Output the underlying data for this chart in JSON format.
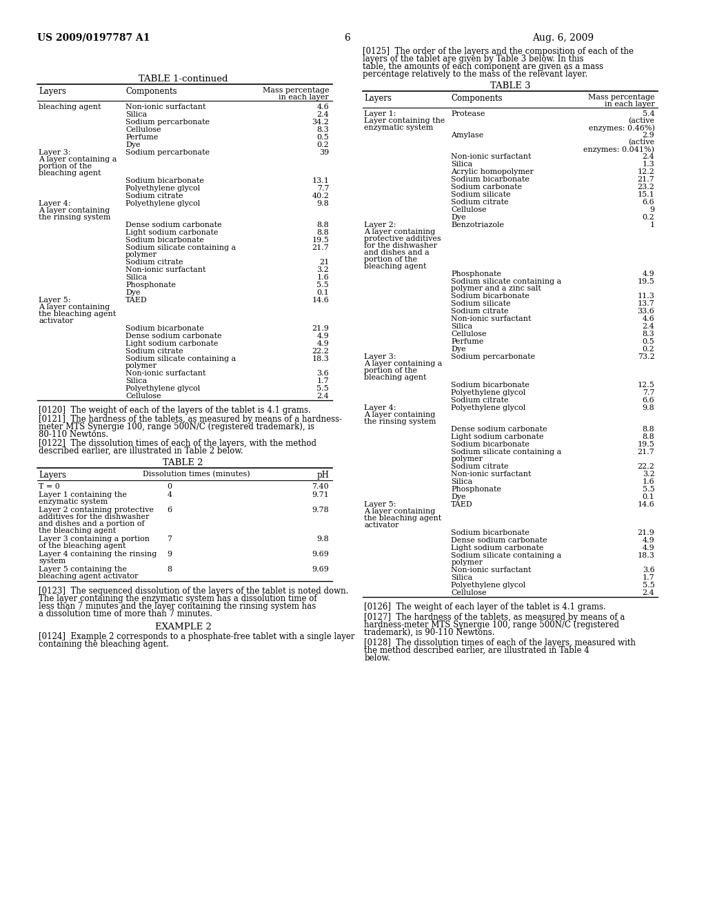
{
  "page_header_left": "US 2009/0197787 A1",
  "page_header_right": "Aug. 6, 2009",
  "page_number": "6",
  "background_color": "#ffffff",
  "text_color": "#000000",
  "font_size_body": 8.5,
  "font_size_header": 10,
  "font_size_table_title": 9.5,
  "left_column": {
    "table1_continued": {
      "title": "TABLE 1-continued",
      "col_headers": [
        "Layers",
        "Components",
        "Mass percentage\nin each layer"
      ],
      "rows": [
        [
          "bleaching agent",
          "Non-ionic surfactant",
          "4.6"
        ],
        [
          "",
          "Silica",
          "2.4"
        ],
        [
          "",
          "Sodium percarbonate",
          "34.2"
        ],
        [
          "",
          "Cellulose",
          "8.3"
        ],
        [
          "",
          "Perfume",
          "0.5"
        ],
        [
          "",
          "Dye",
          "0.2"
        ],
        [
          "Layer 3:\nA layer containing a\nportion of the\nbleaching agent",
          "Sodium percarbonate",
          "39"
        ],
        [
          "",
          "Sodium bicarbonate",
          "13.1"
        ],
        [
          "",
          "Polyethylene glycol",
          "7.7"
        ],
        [
          "",
          "Sodium citrate",
          "40.2"
        ],
        [
          "Layer 4:\nA layer containing\nthe rinsing system",
          "Polyethylene glycol",
          "9.8"
        ],
        [
          "",
          "Dense sodium carbonate",
          "8.8"
        ],
        [
          "",
          "Light sodium carbonate",
          "8.8"
        ],
        [
          "",
          "Sodium bicarbonate",
          "19.5"
        ],
        [
          "",
          "Sodium silicate containing a\npolymer",
          "21.7"
        ],
        [
          "",
          "Sodium citrate",
          "21"
        ],
        [
          "",
          "Non-ionic surfactant",
          "3.2"
        ],
        [
          "",
          "Silica",
          "1.6"
        ],
        [
          "",
          "Phosphonate",
          "5.5"
        ],
        [
          "",
          "Dye",
          "0.1"
        ],
        [
          "Layer 5:\nA layer containing\nthe bleaching agent\nactivator",
          "TAED",
          "14.6"
        ],
        [
          "",
          "Sodium bicarbonate",
          "21.9"
        ],
        [
          "",
          "Dense sodium carbonate",
          "4.9"
        ],
        [
          "",
          "Light sodium carbonate",
          "4.9"
        ],
        [
          "",
          "Sodium citrate",
          "22.2"
        ],
        [
          "",
          "Sodium silicate containing a\npolymer",
          "18.3"
        ],
        [
          "",
          "Non-ionic surfactant",
          "3.6"
        ],
        [
          "",
          "Silica",
          "1.7"
        ],
        [
          "",
          "Polyethylene glycol",
          "5.5"
        ],
        [
          "",
          "Cellulose",
          "2.4"
        ]
      ]
    },
    "paragraphs_bottom": [
      "[0120] The weight of each of the layers of the tablet is 4.1 grams.",
      "[0121] The hardness of the tablets, as measured by means of a hardness-meter MTS Synergie 100, range 500N/C (registered trademark), is 80-110 Newtons.",
      "[0122] The dissolution times of each of the layers, with the method described earlier, are illustrated in Table 2 below."
    ],
    "table2": {
      "title": "TABLE 2",
      "col_headers": [
        "Layers",
        "Dissolution times (minutes)",
        "pH"
      ],
      "rows": [
        [
          "T = 0",
          "0",
          "7.40"
        ],
        [
          "Layer 1 containing the\nenzymatic system",
          "4",
          "9.71"
        ],
        [
          "Layer 2 containing protective\nadditives for the dishwasher\nand dishes and a portion of\nthe bleaching agent",
          "6",
          "9.78"
        ],
        [
          "Layer 3 containing a portion\nof the bleaching agent",
          "7",
          "9.8"
        ],
        [
          "Layer 4 containing the rinsing\nsystem",
          "9",
          "9.69"
        ],
        [
          "Layer 5 containing the\nbleaching agent activator",
          "8",
          "9.69"
        ]
      ]
    },
    "paragraphs_after_table2": [
      "[0123] The sequenced dissolution of the layers of the tablet is noted down. The layer containing the enzymatic system has a dissolution time of less than 7 minutes and the layer containing the rinsing system has a dissolution time of more than 7 minutes.",
      "EXAMPLE 2",
      "[0124] Example 2 corresponds to a phosphate-free tablet with a single layer containing the bleaching agent."
    ]
  },
  "right_column": {
    "paragraph_intro": "[0125] The order of the layers and the composition of each of the layers of the tablet are given by Table 3 below. In this table, the amounts of each component are given as a mass percentage relatively to the mass of the relevant layer.",
    "table3": {
      "title": "TABLE 3",
      "col_headers": [
        "Layers",
        "Components",
        "Mass percentage\nin each layer"
      ],
      "rows": [
        [
          "Layer 1:\nLayer containing the\nenzymatic system",
          "Protease",
          "5.4\n(active\nenzymes: 0.46%)"
        ],
        [
          "",
          "Amylase",
          "2.9\n(active\nenzymes: 0.041%)"
        ],
        [
          "",
          "Non-ionic surfactant",
          "2.4"
        ],
        [
          "",
          "Silica",
          "1.3"
        ],
        [
          "",
          "Acrylic homopolymer",
          "12.2"
        ],
        [
          "",
          "Sodium bicarbonate",
          "21.7"
        ],
        [
          "",
          "Sodium carbonate",
          "23.2"
        ],
        [
          "",
          "Sodium silicate",
          "15.1"
        ],
        [
          "",
          "Sodium citrate",
          "6.6"
        ],
        [
          "",
          "Cellulose",
          "9"
        ],
        [
          "",
          "Dye",
          "0.2"
        ],
        [
          "Layer 2:\nA layer containing\nprotective additives\nfor the dishwasher\nand dishes and a\nportion of the\nbleaching agent",
          "Benzotriazole",
          "1"
        ],
        [
          "",
          "Phosphonate",
          "4.9"
        ],
        [
          "",
          "Sodium silicate containing a\npolymer and a zinc salt",
          "19.5"
        ],
        [
          "",
          "Sodium bicarbonate",
          "11.3"
        ],
        [
          "",
          "Sodium silicate",
          "13.7"
        ],
        [
          "",
          "Sodium citrate",
          "33.6"
        ],
        [
          "",
          "Non-ionic surfactant",
          "4.6"
        ],
        [
          "",
          "Silica",
          "2.4"
        ],
        [
          "",
          "Cellulose",
          "8.3"
        ],
        [
          "",
          "Perfume",
          "0.5"
        ],
        [
          "",
          "Dye",
          "0.2"
        ],
        [
          "Layer 3:\nA layer containing a\nportion of the\nbleaching agent",
          "Sodium percarbonate",
          "73.2"
        ],
        [
          "",
          "Sodium bicarbonate",
          "12.5"
        ],
        [
          "",
          "Polyethylene glycol",
          "7.7"
        ],
        [
          "",
          "Sodium citrate",
          "6.6"
        ],
        [
          "Layer 4:\nA layer containing\nthe rinsing system",
          "Polyethylene glycol",
          "9.8"
        ],
        [
          "",
          "Dense sodium carbonate",
          "8.8"
        ],
        [
          "",
          "Light sodium carbonate",
          "8.8"
        ],
        [
          "",
          "Sodium bicarbonate",
          "19.5"
        ],
        [
          "",
          "Sodium silicate containing a\npolymer",
          "21.7"
        ],
        [
          "",
          "Sodium citrate",
          "22.2"
        ],
        [
          "",
          "Non-ionic surfactant",
          "3.2"
        ],
        [
          "",
          "Silica",
          "1.6"
        ],
        [
          "",
          "Phosphonate",
          "5.5"
        ],
        [
          "",
          "Dye",
          "0.1"
        ],
        [
          "Layer 5:\nA layer containing\nthe bleaching agent\nactivator",
          "TAED",
          "14.6"
        ],
        [
          "",
          "Sodium bicarbonate",
          "21.9"
        ],
        [
          "",
          "Dense sodium carbonate",
          "4.9"
        ],
        [
          "",
          "Light sodium carbonate",
          "4.9"
        ],
        [
          "",
          "Sodium silicate containing a\npolymer",
          "18.3"
        ],
        [
          "",
          "Non-ionic surfactant",
          "3.6"
        ],
        [
          "",
          "Silica",
          "1.7"
        ],
        [
          "",
          "Polyethylene glycol",
          "5.5"
        ],
        [
          "",
          "Cellulose",
          "2.4"
        ]
      ]
    },
    "paragraphs_bottom": [
      "[0126] The weight of each layer of the tablet is 4.1 grams.",
      "[0127] The hardness of the tablets, as measured by means of a hardness-meter MTS Synergie 100, range 500N/C (registered trademark), is 90-110 Newtons.",
      "[0128] The dissolution times of each of the layers, measured with the method described earlier, are illustrated in Table 4 below."
    ]
  }
}
